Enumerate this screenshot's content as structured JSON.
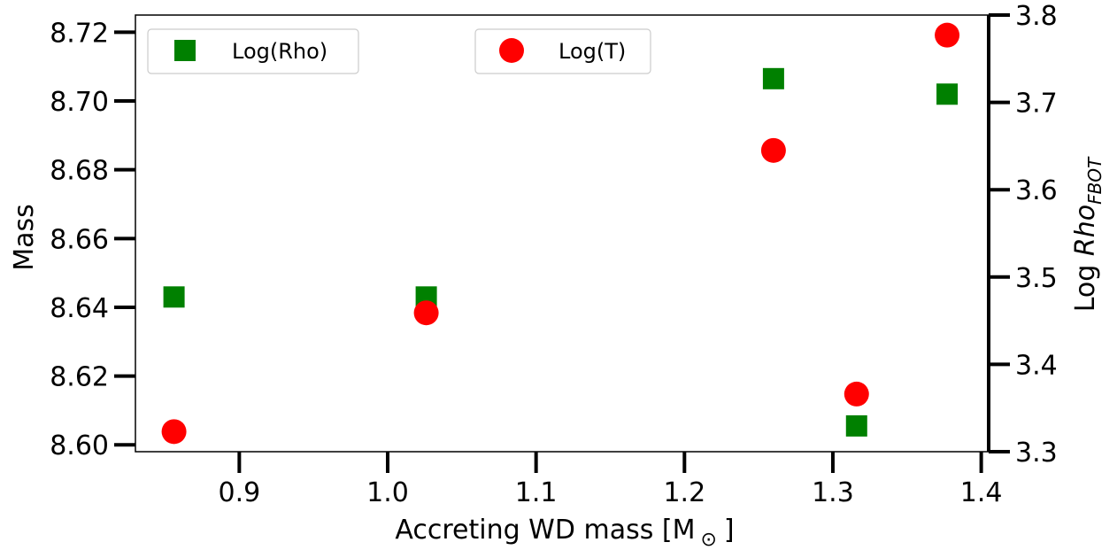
{
  "chart_data": {
    "type": "scatter",
    "xlabel": "Accreting WD mass [M",
    "xlabel_symbol": "⊙",
    "xlabel_close": "]",
    "ylabel_left": "Mass",
    "ylabel_right_prefix": "Log ",
    "ylabel_right_main": "Rho",
    "ylabel_right_sub": "FBOT",
    "xlim": [
      0.83,
      1.405
    ],
    "ylim_left": [
      8.598,
      8.725
    ],
    "ylim_right": [
      3.3,
      3.8
    ],
    "x_ticks": [
      "0.9",
      "1.0",
      "1.1",
      "1.2",
      "1.3",
      "1.4"
    ],
    "y_ticks_left": [
      "8.60",
      "8.62",
      "8.64",
      "8.66",
      "8.68",
      "8.70",
      "8.72"
    ],
    "y_ticks_right": [
      "3.3",
      "3.4",
      "3.5",
      "3.6",
      "3.7",
      "3.8"
    ],
    "legend": [
      {
        "label": "Log(Rho)",
        "marker": "square",
        "color": "#008000"
      },
      {
        "label": "Log(T)",
        "marker": "circle",
        "color": "#ff0000"
      }
    ],
    "series": [
      {
        "name": "Log(Rho)",
        "axis": "left",
        "marker": "square",
        "color": "#008000",
        "points": [
          {
            "x": 0.856,
            "y": 8.643
          },
          {
            "x": 1.026,
            "y": 8.643
          },
          {
            "x": 1.26,
            "y": 8.7065
          },
          {
            "x": 1.316,
            "y": 8.6055
          },
          {
            "x": 1.377,
            "y": 8.702
          }
        ]
      },
      {
        "name": "Log(T)",
        "axis": "right",
        "marker": "circle",
        "color": "#ff0000",
        "points": [
          {
            "x": 0.856,
            "y": 3.323
          },
          {
            "x": 1.026,
            "y": 3.459
          },
          {
            "x": 1.26,
            "y": 3.645
          },
          {
            "x": 1.316,
            "y": 3.366
          },
          {
            "x": 1.377,
            "y": 3.777
          }
        ]
      }
    ]
  }
}
